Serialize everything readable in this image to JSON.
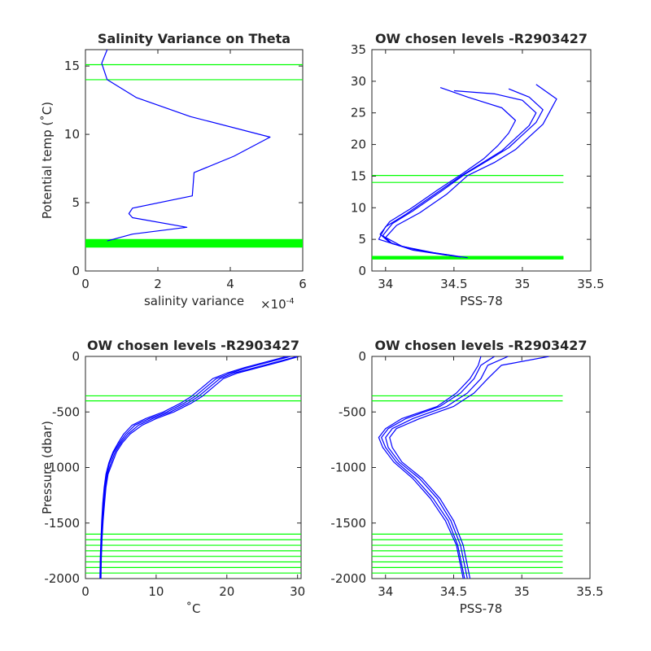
{
  "colors": {
    "profile": "#0000ff",
    "levels": "#00ff00",
    "axes": "#262626"
  },
  "chart_data": [
    {
      "type": "line",
      "title": "Salinity Variance on Theta",
      "xlabel": "salinity variance",
      "xexp": "×10",
      "xexp_sup": "-4",
      "ylabel": "Potential temp (˚C)",
      "xlim": [
        0,
        6
      ],
      "ylim": [
        0,
        16.2
      ],
      "xticks": [
        0,
        2,
        4,
        6
      ],
      "yticks": [
        0,
        5,
        10,
        15
      ],
      "series": [
        {
          "x": [
            0.6,
            0.45,
            0.6,
            1.4,
            2.9,
            5.1,
            4.1,
            3.0,
            2.95,
            1.3,
            1.2,
            1.3,
            2.8,
            1.3,
            0.6
          ],
          "y": [
            16.2,
            15.2,
            14.0,
            12.7,
            11.3,
            9.8,
            8.4,
            7.2,
            5.5,
            4.6,
            4.2,
            3.9,
            3.2,
            2.7,
            2.2
          ]
        }
      ],
      "hlines": [
        15.1,
        14.0,
        2.3,
        2.25,
        2.2,
        2.15,
        2.1,
        2.05,
        2.0,
        1.95,
        1.9,
        1.85,
        1.8,
        1.75
      ]
    },
    {
      "type": "line",
      "title": "OW chosen levels -R2903427",
      "xlabel": "PSS-78",
      "ylabel": "",
      "xlim": [
        33.9,
        35.5
      ],
      "ylim": [
        0,
        35
      ],
      "xticks": [
        34,
        34.5,
        35,
        35.5
      ],
      "yticks": [
        0,
        5,
        10,
        15,
        20,
        25,
        30,
        35
      ],
      "series": [
        {
          "x": [
            34.55,
            34.3,
            34.1,
            33.95,
            34.0,
            34.15,
            34.35,
            34.55,
            34.7,
            34.85,
            34.95,
            35.05,
            35.1,
            35.0,
            34.8,
            34.5
          ],
          "y": [
            2.2,
            3.0,
            4.0,
            5.0,
            7.0,
            9.0,
            12.0,
            15.0,
            17.0,
            19.0,
            21.0,
            23.0,
            25.0,
            27.0,
            28.0,
            28.5
          ]
        },
        {
          "x": [
            34.5,
            34.25,
            34.05,
            33.98,
            34.05,
            34.2,
            34.4,
            34.58,
            34.75,
            34.9,
            35.0,
            35.1,
            35.15,
            35.05,
            34.9
          ],
          "y": [
            2.4,
            3.2,
            4.3,
            5.6,
            7.5,
            9.5,
            12.5,
            15.3,
            17.5,
            19.5,
            21.5,
            23.5,
            25.5,
            27.5,
            28.8
          ]
        },
        {
          "x": [
            34.6,
            34.35,
            34.12,
            34.0,
            34.08,
            34.25,
            34.45,
            34.6,
            34.8,
            34.95,
            35.05,
            35.15,
            35.2,
            35.25,
            35.1
          ],
          "y": [
            2.1,
            2.9,
            3.9,
            5.3,
            7.2,
            9.2,
            12.2,
            15.1,
            17.2,
            19.2,
            21.2,
            23.2,
            25.2,
            27.2,
            29.5
          ]
        },
        {
          "x": [
            34.45,
            34.2,
            34.03,
            33.96,
            34.03,
            34.18,
            34.38,
            34.57,
            34.72,
            34.82,
            34.9,
            34.95,
            34.85,
            34.6,
            34.4
          ],
          "y": [
            2.5,
            3.3,
            4.5,
            5.8,
            7.8,
            9.8,
            12.8,
            15.5,
            17.8,
            19.8,
            21.8,
            23.8,
            25.8,
            27.5,
            29.0
          ]
        }
      ],
      "hlines": [
        15.1,
        14.0,
        2.3,
        2.25,
        2.2,
        2.15,
        2.1,
        2.05,
        2.0,
        1.95,
        1.9
      ]
    },
    {
      "type": "line",
      "title": "OW chosen levels -R2903427",
      "xlabel": "˚C",
      "ylabel": "Pressure (dbar)",
      "xlim": [
        0,
        30.5
      ],
      "ylim": [
        -2000,
        0
      ],
      "xticks": [
        0,
        10,
        20,
        30
      ],
      "yticks": [
        0,
        -500,
        -1000,
        -1500,
        -2000
      ],
      "series": [
        {
          "x": [
            30,
            27,
            24,
            21,
            19,
            17.5,
            16,
            14.5,
            12,
            9.5,
            7.5,
            6.0,
            5.0,
            4.2,
            3.6,
            3.1,
            2.8,
            2.6,
            2.4,
            2.3,
            2.2,
            2.15
          ],
          "y": [
            0,
            -50,
            -100,
            -150,
            -200,
            -280,
            -360,
            -420,
            -500,
            -560,
            -620,
            -700,
            -780,
            -860,
            -960,
            -1060,
            -1180,
            -1320,
            -1480,
            -1640,
            -1820,
            -2000
          ]
        },
        {
          "x": [
            29,
            26,
            23,
            20.5,
            18.5,
            17,
            15.5,
            14,
            11.5,
            9.0,
            7.0,
            5.7,
            4.8,
            4.0,
            3.4,
            3.0,
            2.7,
            2.5,
            2.35,
            2.25,
            2.15,
            2.1
          ],
          "y": [
            0,
            -50,
            -100,
            -150,
            -200,
            -280,
            -360,
            -420,
            -500,
            -560,
            -620,
            -700,
            -780,
            -860,
            -960,
            -1060,
            -1180,
            -1320,
            -1480,
            -1640,
            -1820,
            -2000
          ]
        },
        {
          "x": [
            30.2,
            27.5,
            24.5,
            21.5,
            19.5,
            18,
            16.5,
            15,
            12.5,
            10,
            8.0,
            6.3,
            5.2,
            4.4,
            3.8,
            3.2,
            2.9,
            2.7,
            2.5,
            2.35,
            2.25,
            2.2
          ],
          "y": [
            0,
            -50,
            -100,
            -150,
            -200,
            -280,
            -360,
            -420,
            -500,
            -560,
            -620,
            -700,
            -780,
            -860,
            -960,
            -1060,
            -1180,
            -1320,
            -1480,
            -1640,
            -1820,
            -2000
          ]
        },
        {
          "x": [
            28.5,
            25.5,
            22.5,
            20,
            18,
            16.5,
            15,
            13.5,
            11,
            8.5,
            6.6,
            5.4,
            4.6,
            3.9,
            3.3,
            2.9,
            2.65,
            2.45,
            2.3,
            2.2,
            2.1,
            2.05
          ],
          "y": [
            0,
            -50,
            -100,
            -150,
            -200,
            -280,
            -360,
            -420,
            -500,
            -560,
            -620,
            -700,
            -780,
            -860,
            -960,
            -1060,
            -1180,
            -1320,
            -1480,
            -1640,
            -1820,
            -2000
          ]
        }
      ],
      "hlines": [
        -355,
        -400,
        -1600,
        -1650,
        -1700,
        -1750,
        -1800,
        -1850,
        -1900,
        -1950
      ]
    },
    {
      "type": "line",
      "title": "OW chosen levels -R2903427",
      "xlabel": "PSS-78",
      "ylabel": "",
      "xlim": [
        33.9,
        35.5
      ],
      "ylim": [
        -2000,
        0
      ],
      "xticks": [
        34,
        34.5,
        35,
        35.5
      ],
      "yticks": [
        0,
        -500,
        -1000,
        -1500,
        -2000
      ],
      "series": [
        {
          "x": [
            34.9,
            34.75,
            34.7,
            34.6,
            34.45,
            34.2,
            34.05,
            34.0,
            34.02,
            34.1,
            34.25,
            34.38,
            34.48,
            34.55,
            34.6
          ],
          "y": [
            0,
            -80,
            -200,
            -330,
            -450,
            -560,
            -650,
            -730,
            -820,
            -950,
            -1100,
            -1280,
            -1480,
            -1700,
            -2000
          ]
        },
        {
          "x": [
            34.8,
            34.7,
            34.65,
            34.55,
            34.4,
            34.15,
            34.02,
            33.97,
            34.0,
            34.08,
            34.22,
            34.35,
            34.46,
            34.53,
            34.58
          ],
          "y": [
            0,
            -80,
            -200,
            -330,
            -450,
            -560,
            -650,
            -730,
            -820,
            -950,
            -1100,
            -1280,
            -1480,
            -1700,
            -2000
          ]
        },
        {
          "x": [
            35.2,
            34.85,
            34.75,
            34.65,
            34.5,
            34.25,
            34.08,
            34.03,
            34.05,
            34.12,
            34.27,
            34.4,
            34.5,
            34.57,
            34.62
          ],
          "y": [
            0,
            -80,
            -200,
            -330,
            -450,
            -560,
            -650,
            -730,
            -820,
            -950,
            -1100,
            -1280,
            -1480,
            -1700,
            -2000
          ]
        },
        {
          "x": [
            34.7,
            34.68,
            34.62,
            34.52,
            34.38,
            34.12,
            34.0,
            33.95,
            33.98,
            34.06,
            34.2,
            34.33,
            34.44,
            34.52,
            34.57
          ],
          "y": [
            0,
            -80,
            -200,
            -330,
            -450,
            -560,
            -650,
            -730,
            -820,
            -950,
            -1100,
            -1280,
            -1480,
            -1700,
            -2000
          ]
        }
      ],
      "hlines": [
        -355,
        -400,
        -1600,
        -1650,
        -1700,
        -1750,
        -1800,
        -1850,
        -1900,
        -1950
      ]
    }
  ]
}
